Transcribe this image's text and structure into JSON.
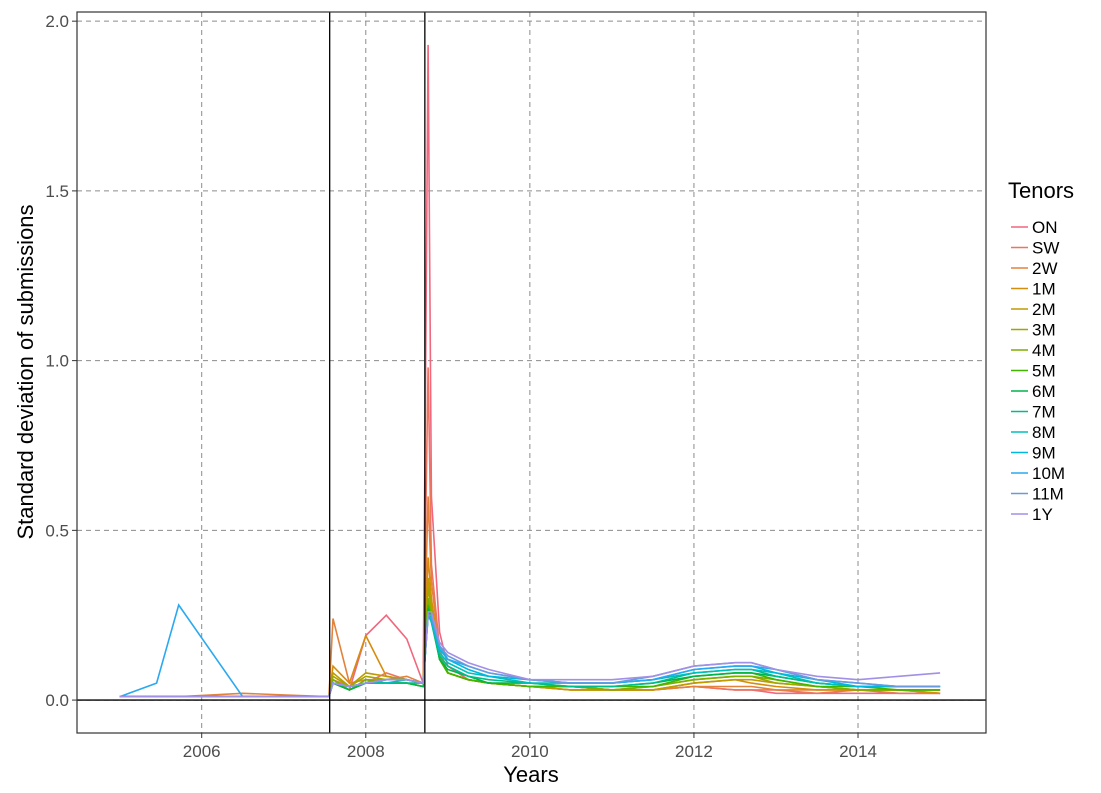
{
  "chart_data": {
    "type": "line",
    "x_label": "Years",
    "y_label": "Standard deviation of submissions",
    "legend_title": "Tenors",
    "xlim": [
      2004.48,
      2015.56
    ],
    "ylim": [
      -0.097,
      2.027
    ],
    "xticks": [
      2006,
      2008,
      2010,
      2012,
      2014
    ],
    "yticks": [
      {
        "value": 0,
        "label": "0.0"
      },
      {
        "value": 0.5,
        "label": "0.5"
      },
      {
        "value": 1,
        "label": "1.0"
      },
      {
        "value": 1.5,
        "label": "1.5"
      },
      {
        "value": 2,
        "label": "2.0"
      }
    ],
    "grid": true,
    "vlines": [
      2007.56,
      2008.72
    ],
    "hline": 0,
    "legend": "right",
    "x": [
      2005.0,
      2005.45,
      2005.72,
      2006.5,
      2007.55,
      2007.6,
      2007.8,
      2008.0,
      2008.25,
      2008.5,
      2008.7,
      2008.76,
      2008.8,
      2008.9,
      2009.0,
      2009.25,
      2009.5,
      2010.0,
      2010.5,
      2011.0,
      2011.5,
      2012.0,
      2012.5,
      2012.7,
      2013.0,
      2013.5,
      2014.0,
      2014.5,
      2015.0
    ],
    "series": [
      {
        "name": "ON",
        "color": "#F0677E",
        "values": [
          0.01,
          0.01,
          0.01,
          0.01,
          0.01,
          0.05,
          0.03,
          0.19,
          0.25,
          0.18,
          0.05,
          1.93,
          0.6,
          0.2,
          0.1,
          0.06,
          0.05,
          0.04,
          0.04,
          0.03,
          0.03,
          0.04,
          0.03,
          0.03,
          0.02,
          0.02,
          0.02,
          0.02,
          0.02
        ]
      },
      {
        "name": "SW",
        "color": "#EC7560",
        "values": [
          0.01,
          0.01,
          0.01,
          0.01,
          0.01,
          0.06,
          0.04,
          0.05,
          0.08,
          0.06,
          0.05,
          0.98,
          0.4,
          0.15,
          0.08,
          0.06,
          0.05,
          0.04,
          0.04,
          0.03,
          0.03,
          0.04,
          0.03,
          0.03,
          0.03,
          0.02,
          0.03,
          0.02,
          0.02
        ]
      },
      {
        "name": "2W",
        "color": "#E3823A",
        "values": [
          0.01,
          0.01,
          0.01,
          0.02,
          0.01,
          0.24,
          0.05,
          0.06,
          0.06,
          0.07,
          0.05,
          0.6,
          0.35,
          0.14,
          0.08,
          0.06,
          0.05,
          0.04,
          0.03,
          0.03,
          0.03,
          0.04,
          0.04,
          0.04,
          0.03,
          0.03,
          0.03,
          0.03,
          0.02
        ]
      },
      {
        "name": "1M",
        "color": "#D68C0C",
        "values": [
          0.01,
          0.01,
          0.01,
          0.01,
          0.01,
          0.1,
          0.05,
          0.19,
          0.07,
          0.06,
          0.05,
          0.42,
          0.3,
          0.13,
          0.08,
          0.06,
          0.05,
          0.04,
          0.03,
          0.03,
          0.03,
          0.05,
          0.06,
          0.05,
          0.04,
          0.03,
          0.03,
          0.03,
          0.02
        ]
      },
      {
        "name": "2M",
        "color": "#C09A00",
        "values": [
          0.01,
          0.01,
          0.01,
          0.01,
          0.01,
          0.08,
          0.04,
          0.08,
          0.07,
          0.06,
          0.05,
          0.36,
          0.28,
          0.13,
          0.08,
          0.06,
          0.05,
          0.04,
          0.03,
          0.03,
          0.03,
          0.05,
          0.06,
          0.06,
          0.05,
          0.04,
          0.03,
          0.03,
          0.03
        ]
      },
      {
        "name": "3M",
        "color": "#A3A500",
        "values": [
          0.01,
          0.01,
          0.01,
          0.01,
          0.01,
          0.07,
          0.04,
          0.07,
          0.06,
          0.06,
          0.05,
          0.33,
          0.27,
          0.12,
          0.08,
          0.06,
          0.05,
          0.04,
          0.04,
          0.03,
          0.04,
          0.06,
          0.07,
          0.07,
          0.05,
          0.04,
          0.03,
          0.03,
          0.03
        ]
      },
      {
        "name": "4M",
        "color": "#7FAE00",
        "values": [
          0.01,
          0.01,
          0.01,
          0.01,
          0.01,
          0.06,
          0.03,
          0.06,
          0.05,
          0.05,
          0.04,
          0.3,
          0.25,
          0.12,
          0.08,
          0.06,
          0.05,
          0.04,
          0.04,
          0.03,
          0.04,
          0.06,
          0.07,
          0.07,
          0.06,
          0.04,
          0.03,
          0.03,
          0.03
        ]
      },
      {
        "name": "5M",
        "color": "#41B500",
        "values": [
          0.01,
          0.01,
          0.01,
          0.01,
          0.01,
          0.05,
          0.03,
          0.05,
          0.05,
          0.05,
          0.04,
          0.28,
          0.24,
          0.12,
          0.08,
          0.06,
          0.05,
          0.04,
          0.04,
          0.04,
          0.04,
          0.07,
          0.08,
          0.08,
          0.06,
          0.04,
          0.04,
          0.03,
          0.03
        ]
      },
      {
        "name": "6M",
        "color": "#00B44C",
        "values": [
          0.01,
          0.01,
          0.01,
          0.01,
          0.01,
          0.05,
          0.03,
          0.05,
          0.05,
          0.05,
          0.04,
          0.27,
          0.23,
          0.12,
          0.09,
          0.07,
          0.05,
          0.05,
          0.04,
          0.04,
          0.05,
          0.07,
          0.08,
          0.08,
          0.07,
          0.05,
          0.04,
          0.04,
          0.04
        ]
      },
      {
        "name": "7M",
        "color": "#00BC8A",
        "values": [
          0.01,
          0.01,
          0.01,
          0.01,
          0.01,
          0.05,
          0.04,
          0.05,
          0.05,
          0.05,
          0.05,
          0.26,
          0.23,
          0.13,
          0.1,
          0.07,
          0.06,
          0.05,
          0.04,
          0.04,
          0.05,
          0.08,
          0.09,
          0.09,
          0.07,
          0.05,
          0.04,
          0.04,
          0.04
        ]
      },
      {
        "name": "8M",
        "color": "#00BFB8",
        "values": [
          0.01,
          0.01,
          0.01,
          0.01,
          0.01,
          0.05,
          0.04,
          0.05,
          0.05,
          0.06,
          0.05,
          0.25,
          0.23,
          0.14,
          0.11,
          0.08,
          0.07,
          0.05,
          0.05,
          0.05,
          0.06,
          0.08,
          0.09,
          0.09,
          0.08,
          0.05,
          0.04,
          0.04,
          0.04
        ]
      },
      {
        "name": "9M",
        "color": "#00B8DE",
        "values": [
          0.01,
          0.01,
          0.01,
          0.01,
          0.01,
          0.05,
          0.04,
          0.05,
          0.06,
          0.06,
          0.05,
          0.25,
          0.24,
          0.15,
          0.12,
          0.09,
          0.07,
          0.06,
          0.05,
          0.05,
          0.06,
          0.09,
          0.1,
          0.1,
          0.08,
          0.06,
          0.04,
          0.04,
          0.04
        ]
      },
      {
        "name": "10M",
        "color": "#2BA9F0",
        "values": [
          0.01,
          0.05,
          0.28,
          0.01,
          0.01,
          0.05,
          0.04,
          0.05,
          0.06,
          0.06,
          0.05,
          0.25,
          0.24,
          0.16,
          0.12,
          0.1,
          0.08,
          0.06,
          0.05,
          0.05,
          0.06,
          0.09,
          0.1,
          0.1,
          0.09,
          0.06,
          0.05,
          0.04,
          0.04
        ]
      },
      {
        "name": "11M",
        "color": "#6A9ADB",
        "values": [
          0.01,
          0.01,
          0.01,
          0.01,
          0.01,
          0.05,
          0.04,
          0.05,
          0.06,
          0.06,
          0.05,
          0.25,
          0.25,
          0.16,
          0.13,
          0.1,
          0.08,
          0.06,
          0.05,
          0.05,
          0.07,
          0.1,
          0.11,
          0.11,
          0.09,
          0.06,
          0.05,
          0.04,
          0.04
        ]
      },
      {
        "name": "1Y",
        "color": "#A28FE6",
        "values": [
          0.01,
          0.01,
          0.01,
          0.01,
          0.01,
          0.05,
          0.04,
          0.05,
          0.06,
          0.06,
          0.05,
          0.26,
          0.26,
          0.17,
          0.14,
          0.11,
          0.09,
          0.06,
          0.06,
          0.06,
          0.07,
          0.1,
          0.11,
          0.11,
          0.09,
          0.07,
          0.06,
          0.07,
          0.08
        ]
      }
    ]
  }
}
